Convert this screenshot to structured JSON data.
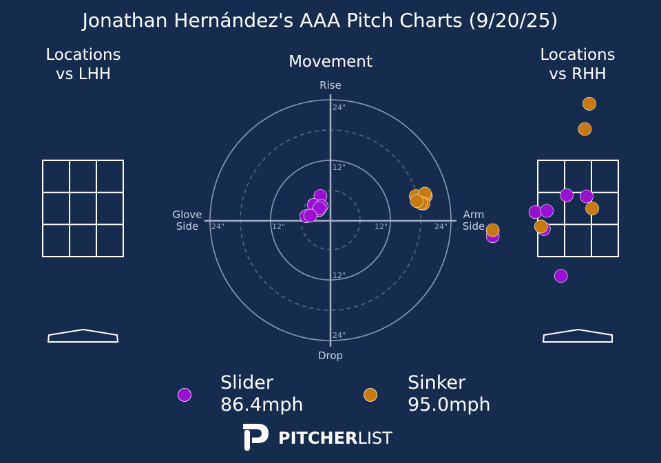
{
  "title": "Jonathan Hernández's AAA Pitch Charts (9/20/25)",
  "panels": {
    "lhh_title_line1": "Locations",
    "lhh_title_line2": "vs LHH",
    "rhh_title_line1": "Locations",
    "rhh_title_line2": "vs RHH",
    "movement_title": "Movement"
  },
  "movement_labels": {
    "top": "Rise",
    "bottom": "Drop",
    "left_line1": "Glove",
    "left_line2": "Side",
    "right_line1": "Arm",
    "right_line2": "Side",
    "ring_inner": "12\"",
    "ring_outer": "24\""
  },
  "colors": {
    "background": "#162c4f",
    "slider": "#9b0fd4",
    "sinker": "#c87a0a"
  },
  "chart_data": [
    {
      "type": "scatter",
      "name": "movement",
      "title": "Movement",
      "xlabel": "Glove Side / Arm Side",
      "ylabel": "Drop / Rise",
      "xlim": [
        -24,
        24
      ],
      "ylim": [
        -24,
        24
      ],
      "units": "inches",
      "series": [
        {
          "name": "Slider",
          "color": "#9b0fd4",
          "points": [
            [
              -2.0,
              4.8
            ],
            [
              -3.3,
              3.0
            ],
            [
              -2.3,
              2.0
            ],
            [
              -1.8,
              2.8
            ],
            [
              -2.2,
              2.4
            ],
            [
              -4.8,
              0.8
            ],
            [
              -4.0,
              0.9
            ]
          ]
        },
        {
          "name": "Sinker",
          "color": "#c87a0a",
          "points": [
            [
              17.0,
              4.8
            ],
            [
              19.0,
              4.8
            ],
            [
              18.8,
              5.3
            ],
            [
              18.5,
              3.3
            ],
            [
              18.0,
              3.4
            ],
            [
              17.2,
              3.8
            ]
          ]
        }
      ]
    },
    {
      "type": "scatter",
      "name": "locations_vs_rhh",
      "title": "Locations vs RHH",
      "series": [
        {
          "name": "Slider",
          "color": "#9b0fd4",
          "points": [
            [
              -0.2,
              0.55
            ],
            [
              0.15,
              0.5
            ],
            [
              -0.6,
              -0.85
            ],
            [
              -1.5,
              -1.15
            ],
            [
              -0.75,
              -0.15
            ],
            [
              -0.55,
              -0.1
            ],
            [
              -0.3,
              -2.8
            ]
          ]
        },
        {
          "name": "Sinker",
          "color": "#c87a0a",
          "points": [
            [
              0.2,
              4.35
            ],
            [
              0.12,
              3.3
            ],
            [
              0.25,
              0.0
            ],
            [
              -1.5,
              -0.9
            ],
            [
              -0.65,
              -0.75
            ]
          ]
        }
      ]
    },
    {
      "type": "scatter",
      "name": "locations_vs_lhh",
      "title": "Locations vs LHH",
      "series": []
    }
  ],
  "legend": [
    {
      "name": "Slider",
      "line1": "Slider",
      "line2": "86.4mph",
      "color": "#9b0fd4"
    },
    {
      "name": "Sinker",
      "line1": "Sinker",
      "line2": "95.0mph",
      "color": "#c87a0a"
    }
  ],
  "logo": {
    "bold": "PITCHER",
    "light": "LIST"
  }
}
